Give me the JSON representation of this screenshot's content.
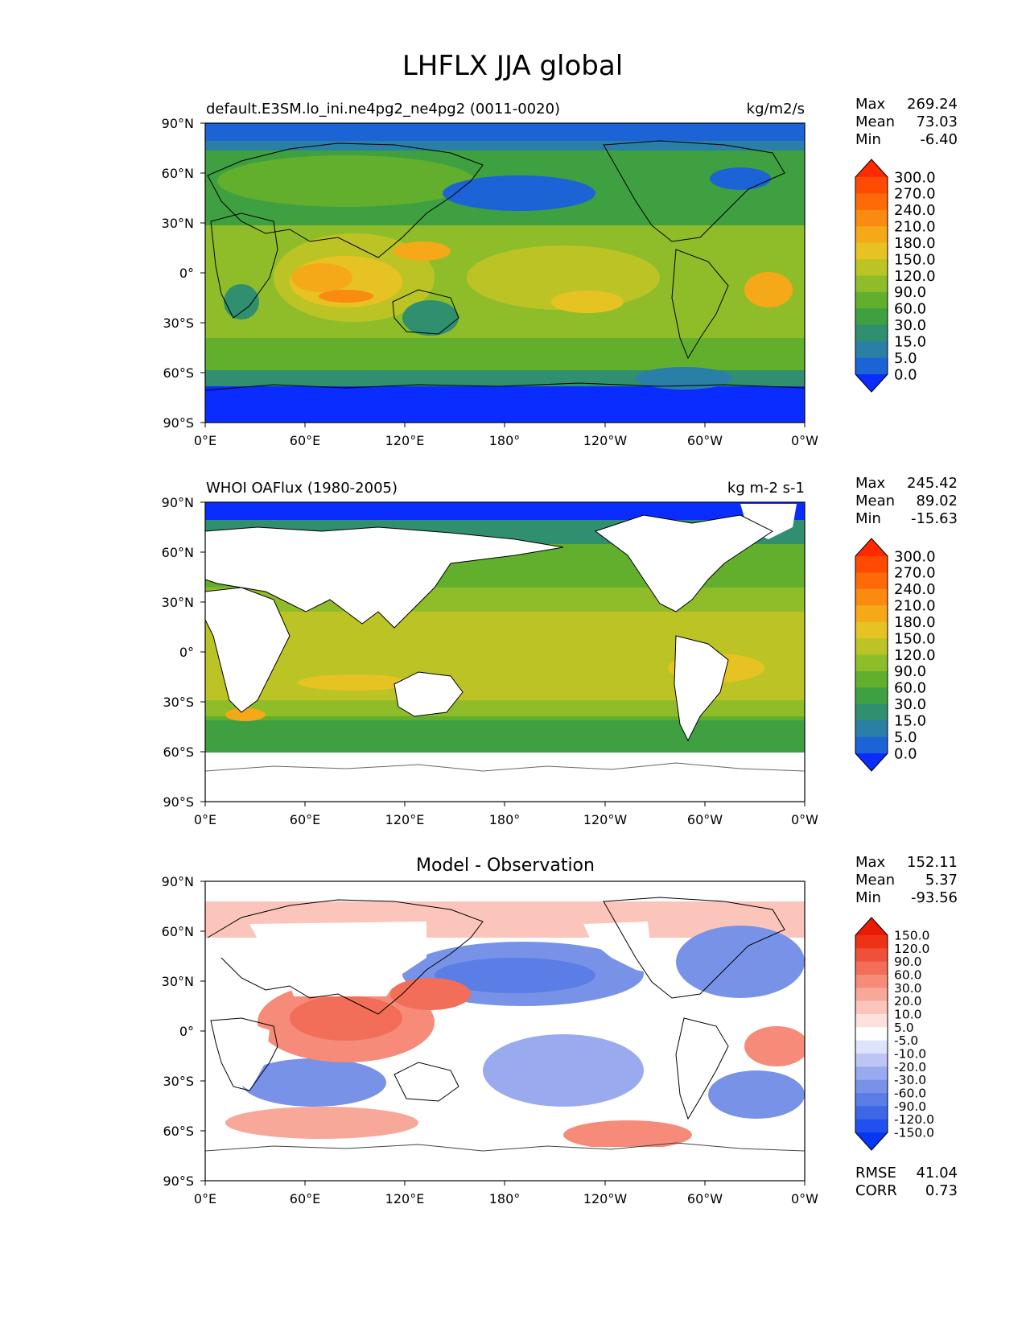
{
  "title": "LHFLX JJA global",
  "panels": [
    {
      "left_title": "default.E3SM.lo_ini.ne4pg2_ne4pg2 (0011-0020)",
      "right_title": "kg/m2/s",
      "center_title": "",
      "stats": [
        {
          "label": "Max",
          "value": "269.24"
        },
        {
          "label": "Mean",
          "value": "73.03"
        },
        {
          "label": "Min",
          "value": "-6.40"
        }
      ],
      "colorbar": "abs"
    },
    {
      "left_title": "WHOI OAFlux (1980-2005)",
      "right_title": "kg m-2 s-1",
      "center_title": "",
      "stats": [
        {
          "label": "Max",
          "value": "245.42"
        },
        {
          "label": "Mean",
          "value": "89.02"
        },
        {
          "label": "Min",
          "value": "-15.63"
        }
      ],
      "colorbar": "abs"
    },
    {
      "left_title": "",
      "right_title": "",
      "center_title": "Model - Observation",
      "stats": [
        {
          "label": "Max",
          "value": "152.11"
        },
        {
          "label": "Mean",
          "value": "5.37"
        },
        {
          "label": "Min",
          "value": "-93.56"
        }
      ],
      "extra_stats": [
        {
          "label": "RMSE",
          "value": "41.04"
        },
        {
          "label": "CORR",
          "value": "0.73"
        }
      ],
      "colorbar": "diff"
    }
  ],
  "x_ticks": [
    "0°E",
    "60°E",
    "120°E",
    "180°",
    "120°W",
    "60°W",
    "0°W"
  ],
  "y_ticks": [
    "90°N",
    "60°N",
    "30°N",
    "0°",
    "30°S",
    "60°S",
    "90°S"
  ],
  "colorbars": {
    "abs": {
      "levels": [
        "0.0",
        "5.0",
        "15.0",
        "30.0",
        "60.0",
        "90.0",
        "120.0",
        "150.0",
        "180.0",
        "210.0",
        "240.0",
        "270.0",
        "300.0"
      ],
      "colors": [
        "#0a2cfe",
        "#1c63d6",
        "#2a7fa6",
        "#2f8f6e",
        "#3ea040",
        "#62af2e",
        "#8fbd2a",
        "#bcc425",
        "#e6c323",
        "#f5a818",
        "#fb8a10",
        "#fe6a08",
        "#ff4a02",
        "#ff2a00"
      ]
    },
    "diff": {
      "levels": [
        "-150.0",
        "-120.0",
        "-90.0",
        "-60.0",
        "-30.0",
        "-20.0",
        "-10.0",
        "-5.0",
        "5.0",
        "10.0",
        "20.0",
        "30.0",
        "60.0",
        "90.0",
        "120.0",
        "150.0"
      ],
      "colors": [
        "#0536f5",
        "#2250ee",
        "#3e67e8",
        "#5a7ee6",
        "#7892e8",
        "#9aaaee",
        "#bcc6f4",
        "#dde3fa",
        "#ffffff",
        "#fde1dc",
        "#fbc5bb",
        "#f8a899",
        "#f58b78",
        "#f36e58",
        "#f05038",
        "#ee3218",
        "#eb1a05"
      ]
    }
  },
  "chart_data": [
    {
      "type": "heatmap",
      "title": "default.E3SM.lo_ini.ne4pg2_ne4pg2 (0011-0020)",
      "units": "kg/m2/s",
      "xlabel": "",
      "ylabel": "",
      "x_range": [
        0,
        360
      ],
      "y_range": [
        -90,
        90
      ],
      "stats": {
        "max": 269.24,
        "mean": 73.03,
        "min": -6.4
      }
    },
    {
      "type": "heatmap",
      "title": "WHOI OAFlux (1980-2005)",
      "units": "kg m-2 s-1",
      "x_range": [
        0,
        360
      ],
      "y_range": [
        -90,
        90
      ],
      "stats": {
        "max": 245.42,
        "mean": 89.02,
        "min": -15.63
      }
    },
    {
      "type": "heatmap",
      "title": "Model - Observation",
      "x_range": [
        0,
        360
      ],
      "y_range": [
        -90,
        90
      ],
      "stats": {
        "max": 152.11,
        "mean": 5.37,
        "min": -93.56,
        "rmse": 41.04,
        "corr": 0.73
      }
    }
  ]
}
